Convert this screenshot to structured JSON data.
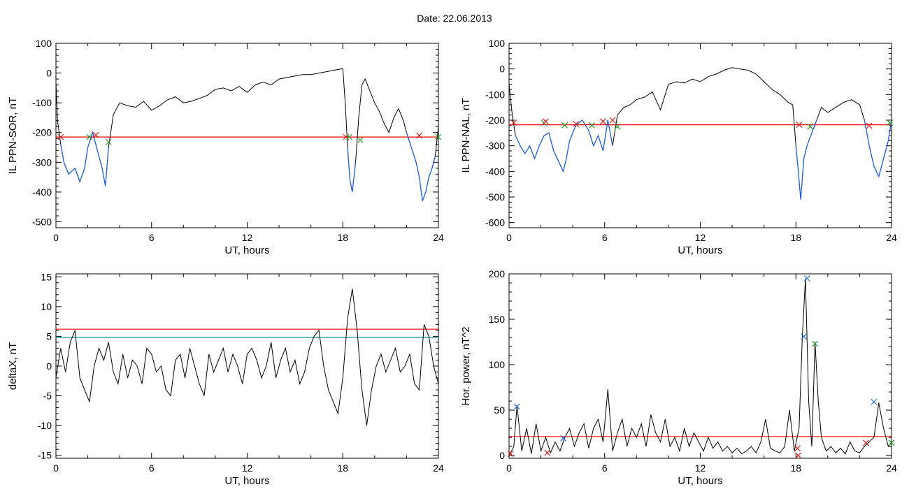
{
  "page_title": "Date:  22.06.2013",
  "colors": {
    "trace": "#000000",
    "storm_trace": "#1f5fd6",
    "threshold_red": "#ff0000",
    "threshold_teal": "#1a9b9b",
    "marker_red": "#d62020",
    "marker_green": "#2a9b2a",
    "marker_blue": "#1f6fd6"
  },
  "chart_data": [
    {
      "type": "line",
      "xlabel": "UT, hours",
      "ylabel": "IL PPN-SOR, nT",
      "xlim": [
        0,
        24
      ],
      "ylim": [
        -520,
        100
      ],
      "xticks": [
        "0",
        "6",
        "12",
        "18",
        "24"
      ],
      "yticks": [
        "100",
        "0",
        "-100",
        "-200",
        "-300",
        "-400",
        "-500"
      ],
      "threshold_lines": [
        {
          "y": -215,
          "color": "red"
        }
      ],
      "series": [
        {
          "x": [
            0,
            0.1,
            0.3,
            0.5,
            0.8,
            1.2,
            1.5,
            1.8,
            2,
            2.3,
            2.6,
            2.9,
            3.1,
            3.3,
            3.6,
            4,
            4.5,
            5,
            5.5,
            6,
            6.5,
            7,
            7.5,
            8,
            8.5,
            9,
            9.5,
            10,
            10.5,
            11,
            11.5,
            12,
            12.5,
            13,
            13.5,
            14,
            14.5,
            15,
            15.5,
            16,
            16.5,
            17,
            17.5,
            18,
            18.15,
            18.3,
            18.45,
            18.6,
            18.8,
            19,
            19.2,
            19.4,
            19.7,
            20,
            20.3,
            20.6,
            20.9,
            21.2,
            21.5,
            21.8,
            22,
            22.3,
            22.6,
            22.8,
            23,
            23.2,
            23.4,
            23.6,
            23.8,
            24
          ],
          "y": [
            -30,
            -160,
            -240,
            -300,
            -340,
            -320,
            -365,
            -320,
            -250,
            -200,
            -260,
            -320,
            -380,
            -250,
            -140,
            -100,
            -110,
            -115,
            -95,
            -125,
            -110,
            -90,
            -80,
            -100,
            -95,
            -85,
            -75,
            -55,
            -50,
            -60,
            -45,
            -65,
            -40,
            -30,
            -40,
            -20,
            -15,
            -10,
            -5,
            -5,
            0,
            5,
            10,
            15,
            -100,
            -250,
            -360,
            -400,
            -300,
            -150,
            -40,
            -20,
            -60,
            -100,
            -130,
            -170,
            -200,
            -150,
            -120,
            -160,
            -200,
            -250,
            -300,
            -350,
            -430,
            -400,
            -350,
            -320,
            -280,
            -180
          ]
        }
      ],
      "markers": [
        {
          "x": 0.3,
          "y": -215,
          "color": "red"
        },
        {
          "x": 2.1,
          "y": -215,
          "color": "green"
        },
        {
          "x": 2.5,
          "y": -208,
          "color": "red"
        },
        {
          "x": 3.3,
          "y": -232,
          "color": "green"
        },
        {
          "x": 18.2,
          "y": -215,
          "color": "red"
        },
        {
          "x": 18.4,
          "y": -215,
          "color": "green"
        },
        {
          "x": 19.1,
          "y": -225,
          "color": "green"
        },
        {
          "x": 22.8,
          "y": -210,
          "color": "red"
        },
        {
          "x": 24,
          "y": -215,
          "color": "green"
        }
      ]
    },
    {
      "type": "line",
      "xlabel": "UT, hours",
      "ylabel": "IL PPN-NAL, nT",
      "xlim": [
        0,
        24
      ],
      "ylim": [
        -620,
        100
      ],
      "xticks": [
        "0",
        "6",
        "12",
        "18",
        "24"
      ],
      "yticks": [
        "100",
        "0",
        "-100",
        "-200",
        "-300",
        "-400",
        "-500",
        "-600"
      ],
      "threshold_lines": [
        {
          "y": -218,
          "color": "red"
        }
      ],
      "series": [
        {
          "x": [
            0,
            0.2,
            0.4,
            0.7,
            1,
            1.3,
            1.6,
            1.9,
            2.2,
            2.5,
            2.8,
            3.1,
            3.4,
            3.6,
            3.8,
            4.2,
            4.6,
            5,
            5.3,
            5.6,
            5.9,
            6.2,
            6.5,
            6.8,
            7.2,
            7.6,
            8,
            8.5,
            9,
            9.5,
            10,
            10.5,
            11,
            11.5,
            12,
            12.5,
            13,
            13.5,
            14,
            14.5,
            15,
            15.5,
            16,
            16.5,
            17,
            17.5,
            17.8,
            18,
            18.15,
            18.3,
            18.5,
            18.7,
            19,
            19.3,
            19.6,
            20,
            20.5,
            21,
            21.5,
            22,
            22.3,
            22.6,
            22.9,
            23.2,
            23.5,
            23.8,
            24
          ],
          "y": [
            -60,
            -180,
            -260,
            -300,
            -330,
            -300,
            -350,
            -300,
            -260,
            -250,
            -320,
            -360,
            -400,
            -350,
            -280,
            -220,
            -200,
            -240,
            -300,
            -260,
            -320,
            -200,
            -300,
            -180,
            -150,
            -140,
            -120,
            -110,
            -90,
            -160,
            -60,
            -50,
            -55,
            -40,
            -50,
            -30,
            -20,
            -5,
            5,
            0,
            -5,
            -20,
            -50,
            -80,
            -100,
            -130,
            -140,
            -300,
            -400,
            -510,
            -350,
            -300,
            -250,
            -200,
            -150,
            -170,
            -150,
            -130,
            -120,
            -140,
            -200,
            -300,
            -380,
            -420,
            -350,
            -280,
            -200
          ]
        }
      ],
      "markers": [
        {
          "x": 0.3,
          "y": -210,
          "color": "red"
        },
        {
          "x": 2.2,
          "y": -210,
          "color": "green"
        },
        {
          "x": 2.3,
          "y": -205,
          "color": "red"
        },
        {
          "x": 3.5,
          "y": -220,
          "color": "green"
        },
        {
          "x": 4.2,
          "y": -215,
          "color": "red"
        },
        {
          "x": 5.2,
          "y": -220,
          "color": "green"
        },
        {
          "x": 5.9,
          "y": -205,
          "color": "red"
        },
        {
          "x": 6.5,
          "y": -200,
          "color": "red"
        },
        {
          "x": 6.8,
          "y": -225,
          "color": "green"
        },
        {
          "x": 18.2,
          "y": -218,
          "color": "red"
        },
        {
          "x": 18.9,
          "y": -225,
          "color": "green"
        },
        {
          "x": 22.6,
          "y": -222,
          "color": "red"
        },
        {
          "x": 23.9,
          "y": -210,
          "color": "green"
        }
      ]
    },
    {
      "type": "line",
      "xlabel": "UT, hours",
      "ylabel": "deltaX, nT",
      "xlim": [
        0,
        24
      ],
      "ylim": [
        -15.5,
        15.5
      ],
      "xticks": [
        "0",
        "6",
        "12",
        "18",
        "24"
      ],
      "yticks": [
        "15",
        "10",
        "5",
        "0",
        "-5",
        "-10",
        "-15"
      ],
      "threshold_lines": [
        {
          "y": 6.2,
          "color": "red"
        },
        {
          "y": 4.8,
          "color": "teal"
        }
      ],
      "series": [
        {
          "x": [
            0,
            0.3,
            0.6,
            0.9,
            1.2,
            1.5,
            1.8,
            2.1,
            2.4,
            2.7,
            3,
            3.3,
            3.6,
            3.9,
            4.2,
            4.5,
            4.8,
            5.1,
            5.4,
            5.7,
            6,
            6.3,
            6.6,
            6.9,
            7.2,
            7.5,
            7.8,
            8.1,
            8.4,
            8.7,
            9,
            9.3,
            9.6,
            9.9,
            10.2,
            10.5,
            10.8,
            11.1,
            11.4,
            11.7,
            12,
            12.3,
            12.6,
            12.9,
            13.2,
            13.5,
            13.8,
            14.1,
            14.4,
            14.7,
            15,
            15.3,
            15.6,
            15.9,
            16.2,
            16.5,
            16.8,
            17.1,
            17.4,
            17.7,
            18,
            18.3,
            18.6,
            18.9,
            19.2,
            19.5,
            19.8,
            20.1,
            20.4,
            20.7,
            21,
            21.3,
            21.6,
            21.9,
            22.2,
            22.5,
            22.8,
            23.1,
            23.4,
            23.7,
            24
          ],
          "y": [
            -2,
            3,
            -1,
            4,
            6,
            -2,
            -4,
            -6,
            0,
            3,
            1,
            4,
            -1,
            -3,
            2,
            -2,
            1,
            0,
            -3,
            3,
            2,
            -1,
            0,
            -4,
            -5,
            1,
            2,
            -2,
            3,
            0,
            -3,
            -5,
            2,
            -1,
            1,
            3,
            -1,
            2,
            0,
            -3,
            2,
            3,
            1,
            -2,
            0,
            4,
            -2,
            1,
            3,
            -1,
            1,
            -3,
            -1,
            3,
            5,
            6,
            0,
            -4,
            -6,
            -8,
            -2,
            8,
            13,
            6,
            -4,
            -10,
            -4,
            0,
            2,
            -1,
            1,
            3,
            -1,
            0,
            2,
            -3,
            -4,
            7,
            5,
            0,
            -3
          ]
        }
      ]
    },
    {
      "type": "line",
      "xlabel": "UT, hours",
      "ylabel": "Hor. power, nT^2",
      "xlim": [
        0,
        24
      ],
      "ylim": [
        -3,
        200
      ],
      "xticks": [
        "0",
        "6",
        "12",
        "18",
        "24"
      ],
      "yticks": [
        "200",
        "150",
        "100",
        "50",
        "0"
      ],
      "threshold_lines": [
        {
          "y": 21,
          "color": "red"
        }
      ],
      "series": [
        {
          "x": [
            0,
            0.3,
            0.5,
            0.8,
            1.1,
            1.4,
            1.7,
            2,
            2.3,
            2.6,
            2.9,
            3.2,
            3.5,
            3.8,
            4.1,
            4.4,
            4.7,
            5,
            5.3,
            5.6,
            5.9,
            6.2,
            6.5,
            6.8,
            7.1,
            7.4,
            7.7,
            8,
            8.3,
            8.6,
            8.9,
            9.2,
            9.5,
            9.8,
            10.1,
            10.4,
            10.7,
            11,
            11.3,
            11.6,
            11.9,
            12.2,
            12.5,
            12.8,
            13.1,
            13.4,
            13.7,
            14,
            14.3,
            14.6,
            14.9,
            15.2,
            15.5,
            15.8,
            16.1,
            16.4,
            16.7,
            17,
            17.3,
            17.6,
            17.9,
            18.2,
            18.4,
            18.6,
            18.8,
            19,
            19.2,
            19.4,
            19.6,
            19.9,
            20.2,
            20.5,
            20.8,
            21.1,
            21.4,
            21.7,
            22,
            22.3,
            22.6,
            22.9,
            23.2,
            23.5,
            23.8,
            24
          ],
          "y": [
            0,
            10,
            55,
            5,
            30,
            2,
            35,
            5,
            20,
            3,
            15,
            5,
            20,
            30,
            10,
            25,
            35,
            8,
            30,
            40,
            15,
            73,
            5,
            25,
            40,
            10,
            30,
            20,
            35,
            10,
            45,
            25,
            15,
            40,
            10,
            20,
            5,
            30,
            10,
            25,
            15,
            5,
            20,
            8,
            15,
            5,
            10,
            3,
            8,
            2,
            5,
            10,
            3,
            15,
            40,
            8,
            5,
            3,
            10,
            50,
            5,
            30,
            130,
            195,
            60,
            10,
            125,
            60,
            20,
            5,
            10,
            3,
            8,
            2,
            15,
            5,
            3,
            10,
            15,
            20,
            58,
            30,
            10,
            15
          ]
        }
      ],
      "markers": [
        {
          "x": 0.1,
          "y": 2,
          "color": "red"
        },
        {
          "x": 0.5,
          "y": 54,
          "color": "blue"
        },
        {
          "x": 2.4,
          "y": 3,
          "color": "red"
        },
        {
          "x": 3.4,
          "y": 19,
          "color": "blue"
        },
        {
          "x": 18.1,
          "y": 8,
          "color": "red"
        },
        {
          "x": 18.15,
          "y": 0,
          "color": "red"
        },
        {
          "x": 18.5,
          "y": 131,
          "color": "blue"
        },
        {
          "x": 18.7,
          "y": 195,
          "color": "blue"
        },
        {
          "x": 19.2,
          "y": 123,
          "color": "green"
        },
        {
          "x": 22.4,
          "y": 14,
          "color": "red"
        },
        {
          "x": 22.9,
          "y": 59,
          "color": "blue"
        },
        {
          "x": 24,
          "y": 14,
          "color": "green"
        }
      ]
    }
  ]
}
